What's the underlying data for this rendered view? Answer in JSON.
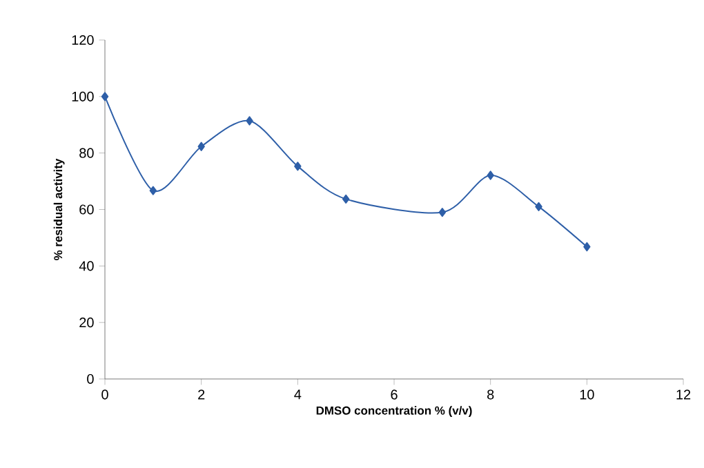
{
  "chart_data": {
    "type": "line",
    "xlabel": "DMSO concentration % (v/v)",
    "ylabel": "% residual activity",
    "x": [
      0,
      1,
      2,
      3,
      4,
      5,
      7,
      8,
      9,
      10
    ],
    "series": [
      {
        "color": "#2e5fa8",
        "values": [
          100,
          66.7,
          82.3,
          91.4,
          75.3,
          63.7,
          59,
          72.1,
          61,
          46.8
        ]
      }
    ],
    "xlim": [
      0,
      12
    ],
    "xticks": [
      0,
      2,
      4,
      6,
      8,
      10,
      12
    ],
    "ylim": [
      0,
      120
    ],
    "yticks": [
      0,
      20,
      40,
      60,
      80,
      100,
      120
    ],
    "grid": false,
    "marker": "diamond",
    "line_style": "solid"
  }
}
